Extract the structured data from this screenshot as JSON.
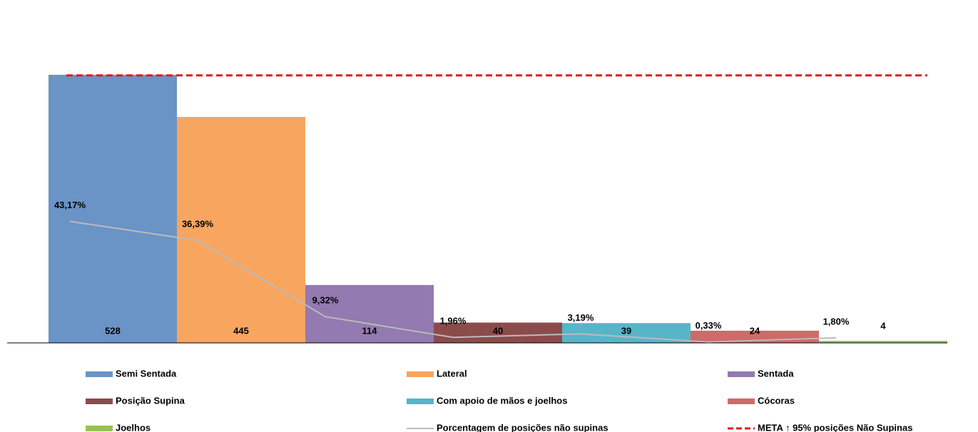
{
  "chart_data": {
    "type": "bar",
    "ylim": [
      0,
      530
    ],
    "y2lim": [
      0,
      100
    ],
    "series": [
      {
        "name": "Semi Sentada",
        "color": "#6a93c6",
        "values": [
          528
        ]
      },
      {
        "name": "Lateral",
        "color": "#f8a560",
        "values": [
          445
        ]
      },
      {
        "name": "Sentada",
        "color": "#937ab0",
        "values": [
          114
        ]
      },
      {
        "name": "Posição Supina",
        "color": "#8b4b4b",
        "values": [
          40
        ]
      },
      {
        "name": "Com apoio de mãos e joelhos",
        "color": "#57b5c9",
        "values": [
          39
        ]
      },
      {
        "name": "Cócoras",
        "color": "#d06a6a",
        "values": [
          24
        ]
      },
      {
        "name": "Joelhos",
        "color": "#98c05a",
        "values": [
          4
        ]
      }
    ],
    "line": {
      "name": "Porcentagem de posições não supinas",
      "color": "#bbbbbb",
      "axis": "y2",
      "values": [
        43.17,
        36.39,
        9.32,
        1.96,
        3.19,
        0.33,
        1.8
      ],
      "value_labels": [
        "43,17%",
        "36,39%",
        "9,32%",
        "1,96%",
        "3,19%",
        "0,33%",
        "1,80%"
      ]
    },
    "target": {
      "name": "META ↑ 95% posições Não Supinas",
      "color": "#e31a1c",
      "axis": "y2",
      "value": 95
    }
  }
}
